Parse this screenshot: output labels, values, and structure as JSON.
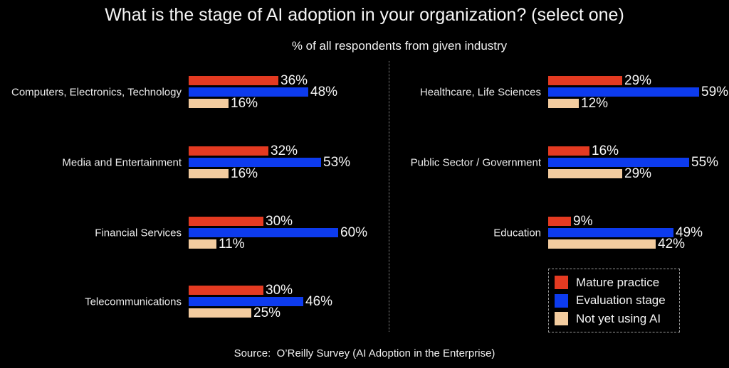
{
  "title": "What is the stage of AI adoption in your organization? (select one)",
  "subtitle": "% of all respondents from given industry",
  "source": "Source:  O’Reilly Survey (AI Adoption in the Enterprise)",
  "colors": {
    "mature": "#e43a21",
    "evaluation": "#0d3bee",
    "not_yet": "#f3cc9f",
    "background": "#000000",
    "text": "#f2f2f2",
    "divider": "#8a8a8a"
  },
  "legend": {
    "items": [
      {
        "label": "Mature practice",
        "color_key": "mature"
      },
      {
        "label": "Evaluation stage",
        "color_key": "evaluation"
      },
      {
        "label": "Not yet using AI",
        "color_key": "not_yet"
      }
    ]
  },
  "chart_data": {
    "type": "bar",
    "orientation": "horizontal",
    "value_unit": "%",
    "title": "What is the stage of AI adoption in your organization? (select one)",
    "subtitle": "% of all respondents from given industry",
    "legend_position": "bottom-right",
    "series": [
      "Mature practice",
      "Evaluation stage",
      "Not yet using AI"
    ],
    "columns": [
      {
        "name": "left",
        "groups": [
          {
            "industry": "Computers, Electronics, Technology",
            "values": [
              36,
              48,
              16
            ]
          },
          {
            "industry": "Media and Entertainment",
            "values": [
              32,
              53,
              16
            ]
          },
          {
            "industry": "Financial Services",
            "values": [
              30,
              60,
              11
            ]
          },
          {
            "industry": "Telecommunications",
            "values": [
              30,
              46,
              25
            ]
          }
        ]
      },
      {
        "name": "right",
        "groups": [
          {
            "industry": "Healthcare, Life Sciences",
            "values": [
              29,
              59,
              12
            ]
          },
          {
            "industry": "Public Sector / Government",
            "values": [
              16,
              55,
              29
            ]
          },
          {
            "industry": "Education",
            "values": [
              9,
              49,
              42
            ]
          }
        ]
      }
    ]
  }
}
